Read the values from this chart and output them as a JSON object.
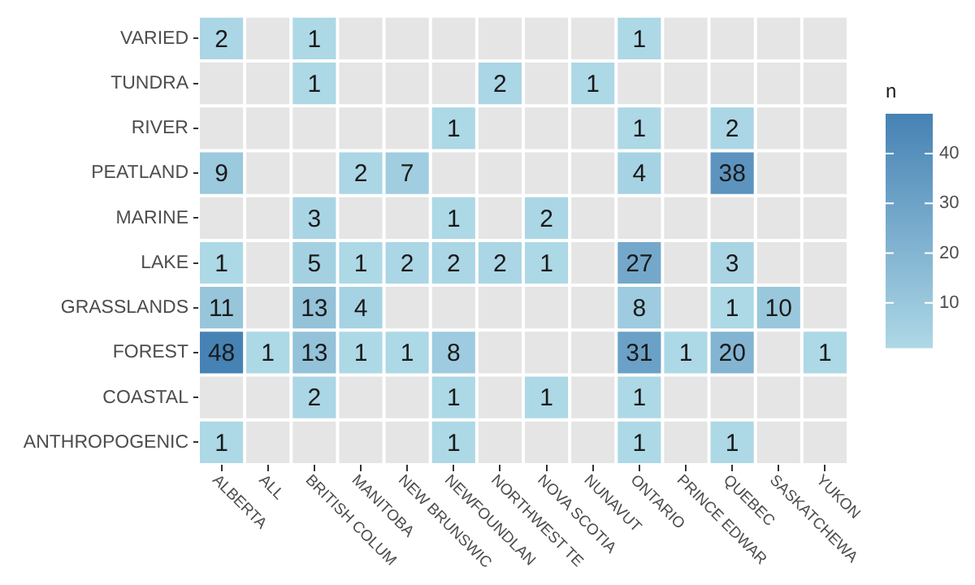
{
  "chart_data": {
    "type": "heatmap",
    "clabel": "n",
    "categories": [
      "ALBERTA",
      "ALL",
      "BRITISH COLUM",
      "MANITOBA",
      "NEW BRUNSWIC",
      "NEWFOUNDLAN",
      "NORTHWEST TE",
      "NOVA SCOTIA",
      "NUNAVUT",
      "ONTARIO",
      "PRINCE EDWAR",
      "QUEBEC",
      "SASKATCHEWA",
      "YUKON"
    ],
    "y_categories": [
      "VARIED",
      "TUNDRA",
      "RIVER",
      "PEATLAND",
      "MARINE",
      "LAKE",
      "GRASSLANDS",
      "FOREST",
      "COASTAL",
      "ANTHROPOGENIC"
    ],
    "cells": [
      [
        2,
        null,
        1,
        null,
        null,
        null,
        null,
        null,
        null,
        1,
        null,
        null,
        null,
        null
      ],
      [
        null,
        null,
        1,
        null,
        null,
        null,
        2,
        null,
        1,
        null,
        null,
        null,
        null,
        null
      ],
      [
        null,
        null,
        null,
        null,
        null,
        1,
        null,
        null,
        null,
        1,
        null,
        2,
        null,
        null
      ],
      [
        9,
        null,
        null,
        2,
        7,
        null,
        null,
        null,
        null,
        4,
        null,
        38,
        null,
        null
      ],
      [
        null,
        null,
        3,
        null,
        null,
        1,
        null,
        2,
        null,
        null,
        null,
        null,
        null,
        null
      ],
      [
        1,
        null,
        5,
        1,
        2,
        2,
        2,
        1,
        null,
        27,
        null,
        3,
        null,
        null
      ],
      [
        11,
        null,
        13,
        4,
        null,
        null,
        null,
        null,
        null,
        8,
        null,
        1,
        10,
        null
      ],
      [
        48,
        1,
        13,
        1,
        1,
        8,
        null,
        null,
        null,
        31,
        1,
        20,
        null,
        1
      ],
      [
        null,
        null,
        2,
        null,
        null,
        1,
        null,
        1,
        null,
        1,
        null,
        null,
        null,
        null
      ],
      [
        1,
        null,
        null,
        null,
        null,
        1,
        null,
        null,
        null,
        1,
        null,
        1,
        null,
        null
      ]
    ],
    "clim": [
      1,
      48
    ],
    "cticks": [
      10,
      20,
      30,
      40
    ],
    "data_labels": true
  }
}
